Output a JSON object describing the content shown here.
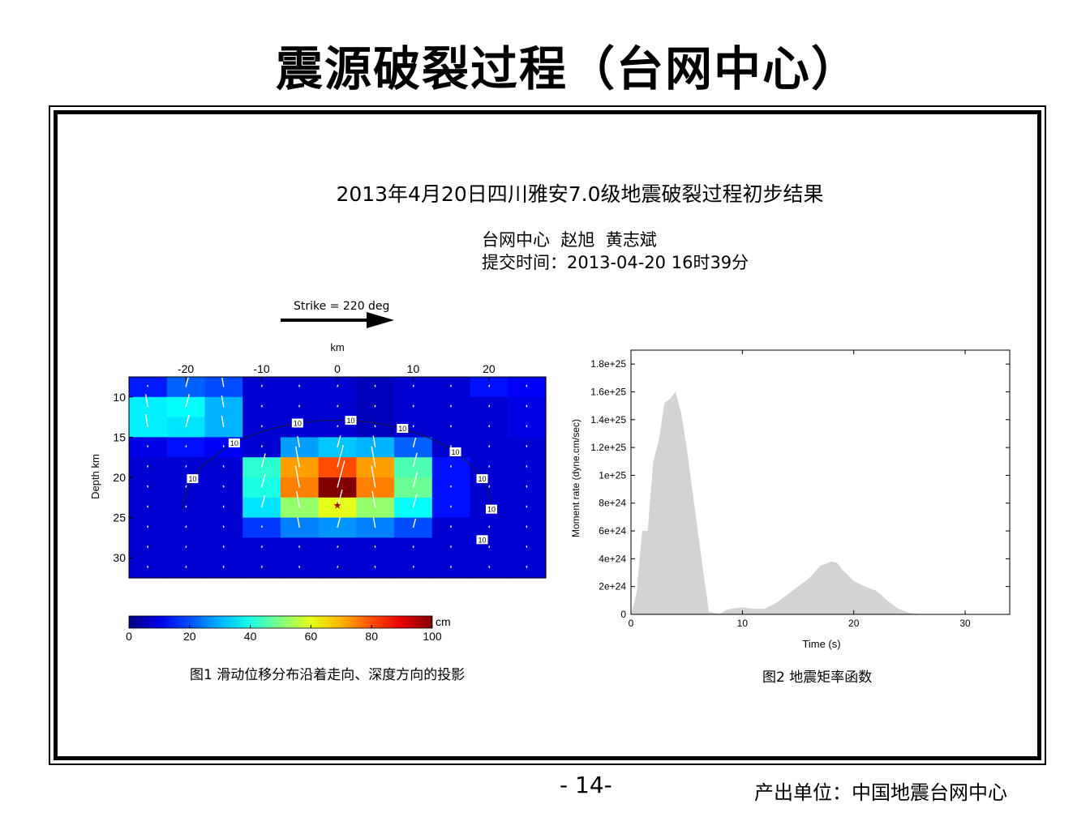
{
  "slide": {
    "title": "震源破裂过程（台网中心）",
    "page_number": "- 14-",
    "producer": "产出单位：中国地震台网中心"
  },
  "panel": {
    "main_title": "2013年4月20日四川雅安7.0级地震破裂过程初步结果",
    "authors": "台网中心  赵旭  黄志斌",
    "submit_time": "提交时间：2013-04-20 16时39分",
    "strike_label": "Strike = 220 deg"
  },
  "chart_data": [
    {
      "type": "heatmap",
      "caption": "图1 滑动位移分布沿着走向、深度方向的投影",
      "xlabel": "km",
      "ylabel": "Depth km",
      "xticks": [
        -20,
        -10,
        0,
        10,
        20
      ],
      "yticks": [
        10,
        15,
        20,
        25,
        30
      ],
      "xlim": [
        -27.5,
        27.5
      ],
      "ylim": [
        7.5,
        32.5
      ],
      "x_centers": [
        -25,
        -20,
        -15,
        -10,
        -5,
        0,
        5,
        10,
        15,
        20,
        25
      ],
      "y_centers": [
        8.75,
        11.25,
        13.75,
        16.25,
        18.75,
        21.25,
        23.75,
        26.25,
        28.75,
        31.25
      ],
      "slip_cm": [
        [
          15,
          22,
          20,
          8,
          8,
          8,
          6,
          8,
          8,
          14,
          12
        ],
        [
          36,
          38,
          30,
          8,
          8,
          8,
          6,
          8,
          8,
          8,
          10
        ],
        [
          36,
          35,
          30,
          8,
          8,
          8,
          6,
          8,
          8,
          8,
          10
        ],
        [
          10,
          14,
          12,
          8,
          28,
          32,
          30,
          22,
          8,
          8,
          8
        ],
        [
          8,
          8,
          8,
          42,
          72,
          80,
          72,
          45,
          14,
          8,
          8
        ],
        [
          8,
          8,
          8,
          40,
          75,
          100,
          75,
          48,
          14,
          8,
          8
        ],
        [
          8,
          8,
          8,
          35,
          52,
          60,
          52,
          38,
          14,
          8,
          8
        ],
        [
          8,
          8,
          8,
          18,
          25,
          27,
          25,
          20,
          8,
          8,
          8
        ],
        [
          8,
          8,
          8,
          8,
          8,
          8,
          8,
          8,
          8,
          8,
          8
        ],
        [
          8,
          8,
          8,
          8,
          8,
          8,
          8,
          8,
          8,
          8,
          8
        ]
      ],
      "contour_labels": [
        "10",
        "10",
        "10",
        "10",
        "10",
        "10",
        "10",
        "10",
        "10"
      ],
      "hypocenter": {
        "x": 0,
        "depth": 23.5
      },
      "colorbar": {
        "unit": "cm",
        "ticks": [
          0,
          20,
          40,
          60,
          80,
          100
        ],
        "range": [
          0,
          100
        ]
      }
    },
    {
      "type": "area",
      "caption": "图2 地震矩率函数",
      "xlabel": "Time (s)",
      "ylabel": "Moment rate (dyne.cm/sec)",
      "xlim": [
        0,
        34
      ],
      "ylim": [
        0,
        1.9e+25
      ],
      "xticks": [
        0,
        10,
        20,
        30
      ],
      "yticks": [
        0,
        2e+24,
        4e+24,
        6e+24,
        8e+24,
        1e+25,
        1.2e+25,
        1.4e+25,
        1.6e+25,
        1.8e+25
      ],
      "ytick_labels": [
        "0",
        "2e+24",
        "4e+24",
        "6e+24",
        "8e+24",
        "1e+25",
        "1.2e+25",
        "1.4e+25",
        "1.6e+25",
        "1.8e+25"
      ],
      "x": [
        0,
        0.5,
        1,
        1.5,
        2,
        2.5,
        3,
        3.5,
        4,
        4.5,
        5,
        5.5,
        6,
        6.5,
        7,
        7.5,
        8,
        8.5,
        9,
        10,
        11,
        12,
        13,
        14,
        15,
        16,
        17,
        18,
        18.5,
        19,
        20,
        21,
        22,
        23,
        24,
        25,
        26,
        27,
        28
      ],
      "y": [
        0,
        1.5e+24,
        6e+24,
        6e+24,
        1.1e+25,
        1.25e+25,
        1.52e+25,
        1.55e+25,
        1.6e+25,
        1.45e+25,
        1.2e+25,
        9e+24,
        6e+24,
        3e+24,
        2e+23,
        1e+23,
        5e+22,
        3e+23,
        4e+23,
        5e+23,
        4e+23,
        4e+23,
        8e+23,
        1.4e+24,
        2e+24,
        2.6e+24,
        3.5e+24,
        3.8e+24,
        3.7e+24,
        3.2e+24,
        2.4e+24,
        2e+24,
        1.7e+24,
        1e+24,
        4e+23,
        1e+23,
        2e+22,
        0,
        0
      ]
    }
  ]
}
